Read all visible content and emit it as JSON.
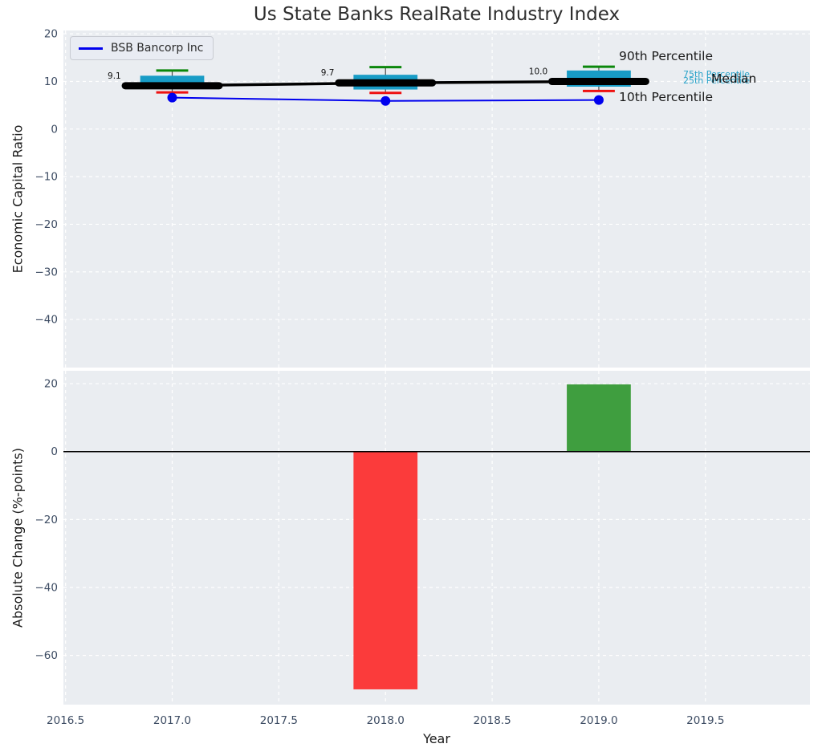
{
  "figure": {
    "title": "Us State Banks RealRate Industry Index",
    "plot_bg": "#eaedf1",
    "grid_color": "#ffffff",
    "tick_color": "#3d4c63",
    "text_color": "#1a1a1a"
  },
  "legend": {
    "label": "BSB Bancorp Inc",
    "line_color": "#0000ee"
  },
  "annotations": {
    "p90": {
      "text": "90th Percentile",
      "color": "#1a1a1a"
    },
    "p75": {
      "text": "75th Percentile",
      "color": "#29a3c9"
    },
    "p25": {
      "text": "25th Percentile",
      "color": "#29a3c9"
    },
    "median": {
      "text": "Median",
      "color": "#111111"
    },
    "p10": {
      "text": "10th Percentile",
      "color": "#1a1a1a"
    }
  },
  "chart_data": [
    {
      "type": "box",
      "title": "Us State Banks RealRate Industry Index",
      "xlabel": "",
      "ylabel": "Economic Capital Ratio",
      "xlim": [
        2016.49,
        2019.99
      ],
      "ylim": [
        -50.1,
        20.7
      ],
      "yticks": [
        20,
        10,
        0,
        -10,
        -20,
        -30,
        -40
      ],
      "xticks": [
        2016.5,
        2017.0,
        2017.5,
        2018.0,
        2018.5,
        2019.0,
        2019.5
      ],
      "grid": true,
      "legend_position": "upper left",
      "box_color": "#189cc6",
      "whisker_line_color": "#4a4a4a",
      "whisker_high_color": "#0b870b",
      "whisker_low_color": "#ee1111",
      "median_line_color": "#000000",
      "box_width": 0.3,
      "cap_width": 0.15,
      "median_segment_width": 0.44,
      "boxes": [
        {
          "x": 2017,
          "p10": 7.7,
          "q1": 8.4,
          "median": 9.1,
          "q3": 11.2,
          "p90": 12.3,
          "median_label": "9.1"
        },
        {
          "x": 2018,
          "p10": 7.6,
          "q1": 8.3,
          "median": 9.7,
          "q3": 11.4,
          "p90": 13.0,
          "median_label": "9.7"
        },
        {
          "x": 2019,
          "p10": 8.0,
          "q1": 8.9,
          "median": 10.0,
          "q3": 12.3,
          "p90": 13.1,
          "median_label": "10.0"
        }
      ],
      "series": [
        {
          "name": "BSB Bancorp Inc",
          "color": "#0000ee",
          "x": [
            2017,
            2018,
            2019
          ],
          "values": [
            6.6,
            5.9,
            6.1
          ]
        }
      ]
    },
    {
      "type": "bar",
      "title": "",
      "xlabel": "Year",
      "ylabel": "Absolute Change (%-points)",
      "xlim": [
        2016.49,
        2019.99
      ],
      "ylim": [
        -74.5,
        23.8
      ],
      "yticks": [
        20,
        0,
        -20,
        -40,
        -60
      ],
      "xticks": [
        2016.5,
        2017.0,
        2017.5,
        2018.0,
        2018.5,
        2019.0,
        2019.5
      ],
      "grid": true,
      "x": [
        2018,
        2019
      ],
      "values": [
        -70,
        19.8
      ],
      "bar_colors": [
        "#fb3b3b",
        "#3f9e3f"
      ],
      "bar_width": 0.3,
      "zero_line": true
    }
  ]
}
